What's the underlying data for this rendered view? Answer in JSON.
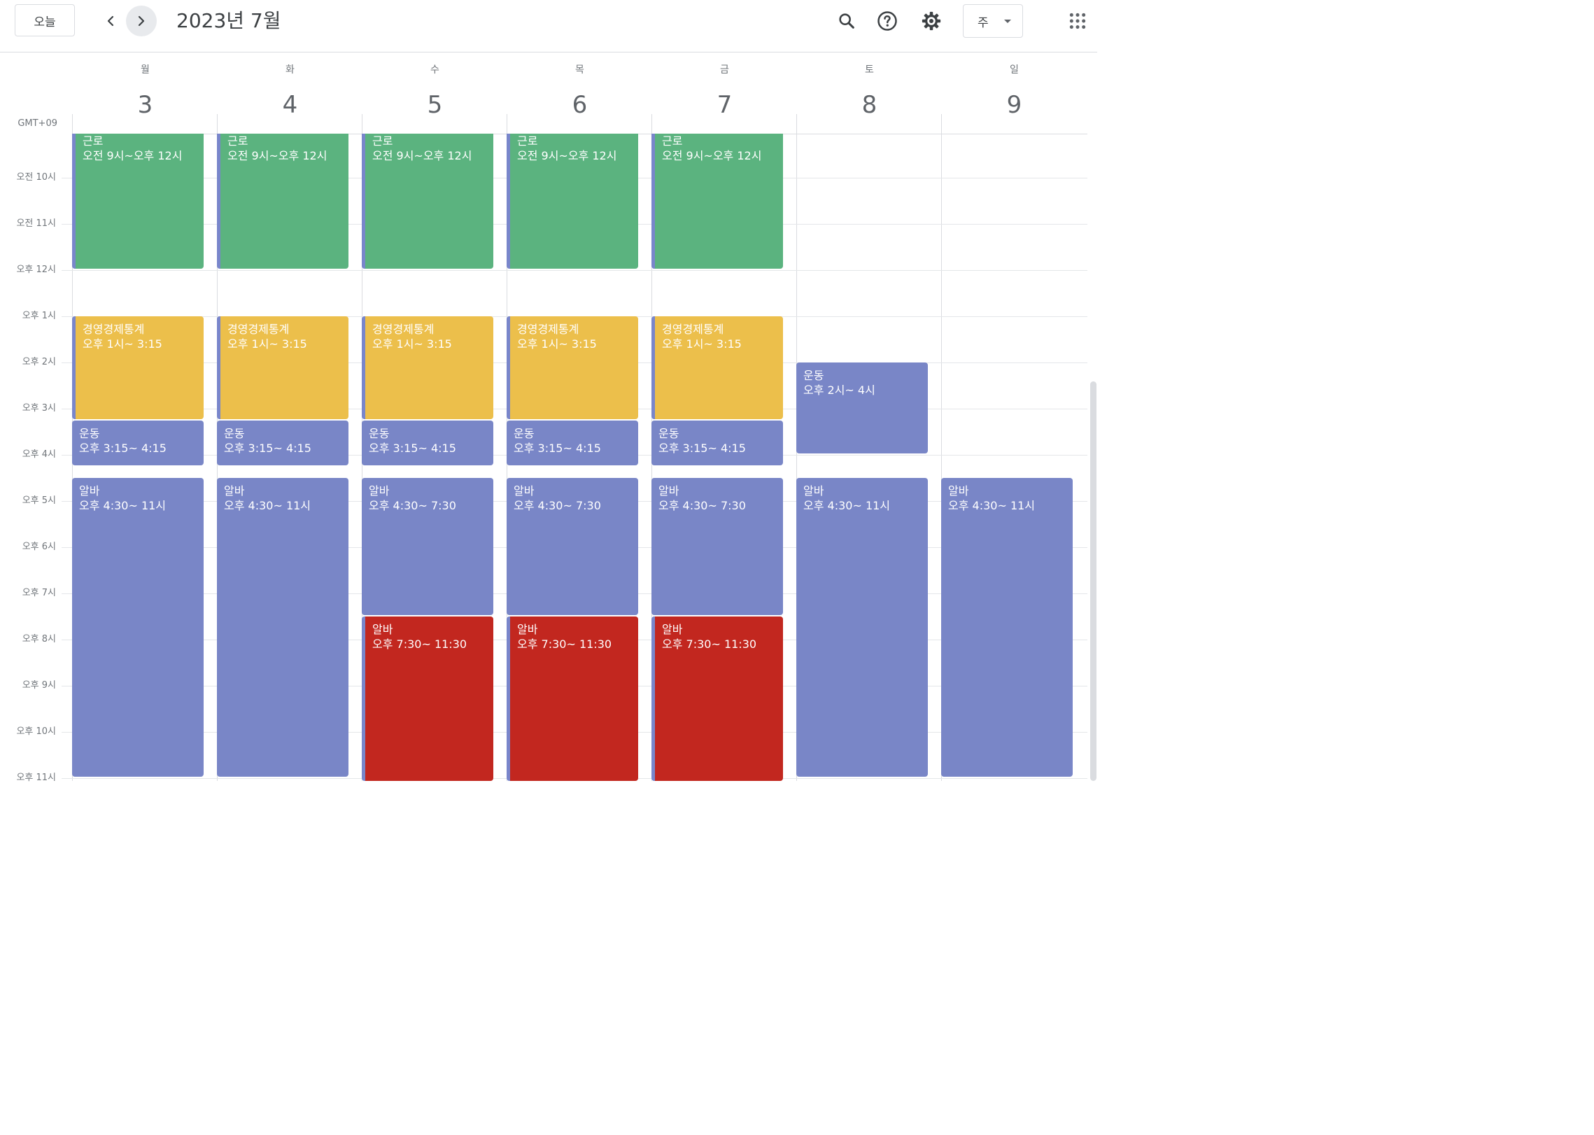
{
  "toolbar": {
    "today_label": "오늘",
    "title": "2023년 7월",
    "view_label": "주",
    "icons": [
      "chevron-left-icon",
      "chevron-right-icon",
      "search-icon",
      "help-icon",
      "settings-icon",
      "apps-grid-icon"
    ]
  },
  "timezone": "GMT+09",
  "days": [
    {
      "dow": "월",
      "num": "3"
    },
    {
      "dow": "화",
      "num": "4"
    },
    {
      "dow": "수",
      "num": "5"
    },
    {
      "dow": "목",
      "num": "6"
    },
    {
      "dow": "금",
      "num": "7"
    },
    {
      "dow": "토",
      "num": "8"
    },
    {
      "dow": "일",
      "num": "9"
    }
  ],
  "time_labels": [
    "오전 10시",
    "오전 11시",
    "오후 12시",
    "오후 1시",
    "오후 2시",
    "오후 3시",
    "오후 4시",
    "오후 5시",
    "오후 6시",
    "오후 7시",
    "오후 8시",
    "오후 9시",
    "오후 10시",
    "오후 11시"
  ],
  "events": [
    {
      "day": 0,
      "start": 9,
      "end": 12,
      "title": "근로",
      "time": "오전 9시~오후 12시",
      "color": "green",
      "bar": true
    },
    {
      "day": 1,
      "start": 9,
      "end": 12,
      "title": "근로",
      "time": "오전 9시~오후 12시",
      "color": "green",
      "bar": true
    },
    {
      "day": 2,
      "start": 9,
      "end": 12,
      "title": "근로",
      "time": "오전 9시~오후 12시",
      "color": "green",
      "bar": true
    },
    {
      "day": 3,
      "start": 9,
      "end": 12,
      "title": "근로",
      "time": "오전 9시~오후 12시",
      "color": "green",
      "bar": true
    },
    {
      "day": 4,
      "start": 9,
      "end": 12,
      "title": "근로",
      "time": "오전 9시~오후 12시",
      "color": "green",
      "bar": true
    },
    {
      "day": 0,
      "start": 13,
      "end": 15.25,
      "title": "경영경제통계",
      "time": "오후 1시~ 3:15",
      "color": "yellow",
      "bar": true
    },
    {
      "day": 1,
      "start": 13,
      "end": 15.25,
      "title": "경영경제통계",
      "time": "오후 1시~ 3:15",
      "color": "yellow",
      "bar": true
    },
    {
      "day": 2,
      "start": 13,
      "end": 15.25,
      "title": "경영경제통계",
      "time": "오후 1시~ 3:15",
      "color": "yellow",
      "bar": true
    },
    {
      "day": 3,
      "start": 13,
      "end": 15.25,
      "title": "경영경제통계",
      "time": "오후 1시~ 3:15",
      "color": "yellow",
      "bar": true
    },
    {
      "day": 4,
      "start": 13,
      "end": 15.25,
      "title": "경영경제통계",
      "time": "오후 1시~ 3:15",
      "color": "yellow",
      "bar": true
    },
    {
      "day": 0,
      "start": 15.25,
      "end": 16.25,
      "title": "운동",
      "time": "오후 3:15~ 4:15",
      "color": "purple",
      "bar": false
    },
    {
      "day": 1,
      "start": 15.25,
      "end": 16.25,
      "title": "운동",
      "time": "오후 3:15~ 4:15",
      "color": "purple",
      "bar": false
    },
    {
      "day": 2,
      "start": 15.25,
      "end": 16.25,
      "title": "운동",
      "time": "오후 3:15~ 4:15",
      "color": "purple",
      "bar": false
    },
    {
      "day": 3,
      "start": 15.25,
      "end": 16.25,
      "title": "운동",
      "time": "오후 3:15~ 4:15",
      "color": "purple",
      "bar": false
    },
    {
      "day": 4,
      "start": 15.25,
      "end": 16.25,
      "title": "운동",
      "time": "오후 3:15~ 4:15",
      "color": "purple",
      "bar": false
    },
    {
      "day": 5,
      "start": 14,
      "end": 16,
      "title": "운동",
      "time": "오후 2시~ 4시",
      "color": "purple",
      "bar": false
    },
    {
      "day": 0,
      "start": 16.5,
      "end": 23,
      "title": "알바",
      "time": "오후 4:30~ 11시",
      "color": "purple",
      "bar": false
    },
    {
      "day": 1,
      "start": 16.5,
      "end": 23,
      "title": "알바",
      "time": "오후 4:30~ 11시",
      "color": "purple",
      "bar": false
    },
    {
      "day": 2,
      "start": 16.5,
      "end": 19.5,
      "title": "알바",
      "time": "오후 4:30~ 7:30",
      "color": "purple",
      "bar": false
    },
    {
      "day": 3,
      "start": 16.5,
      "end": 19.5,
      "title": "알바",
      "time": "오후 4:30~ 7:30",
      "color": "purple",
      "bar": false
    },
    {
      "day": 4,
      "start": 16.5,
      "end": 19.5,
      "title": "알바",
      "time": "오후 4:30~ 7:30",
      "color": "purple",
      "bar": false
    },
    {
      "day": 5,
      "start": 16.5,
      "end": 23,
      "title": "알바",
      "time": "오후 4:30~ 11시",
      "color": "purple",
      "bar": false
    },
    {
      "day": 6,
      "start": 16.5,
      "end": 23,
      "title": "알바",
      "time": "오후 4:30~ 11시",
      "color": "purple",
      "bar": false
    },
    {
      "day": 2,
      "start": 19.5,
      "end": 23.5,
      "title": "알바",
      "time": "오후 7:30~ 11:30",
      "color": "red",
      "bar": true
    },
    {
      "day": 3,
      "start": 19.5,
      "end": 23.5,
      "title": "알바",
      "time": "오후 7:30~ 11:30",
      "color": "red",
      "bar": true
    },
    {
      "day": 4,
      "start": 19.5,
      "end": 23.5,
      "title": "알바",
      "time": "오후 7:30~ 11:30",
      "color": "red",
      "bar": true
    }
  ]
}
